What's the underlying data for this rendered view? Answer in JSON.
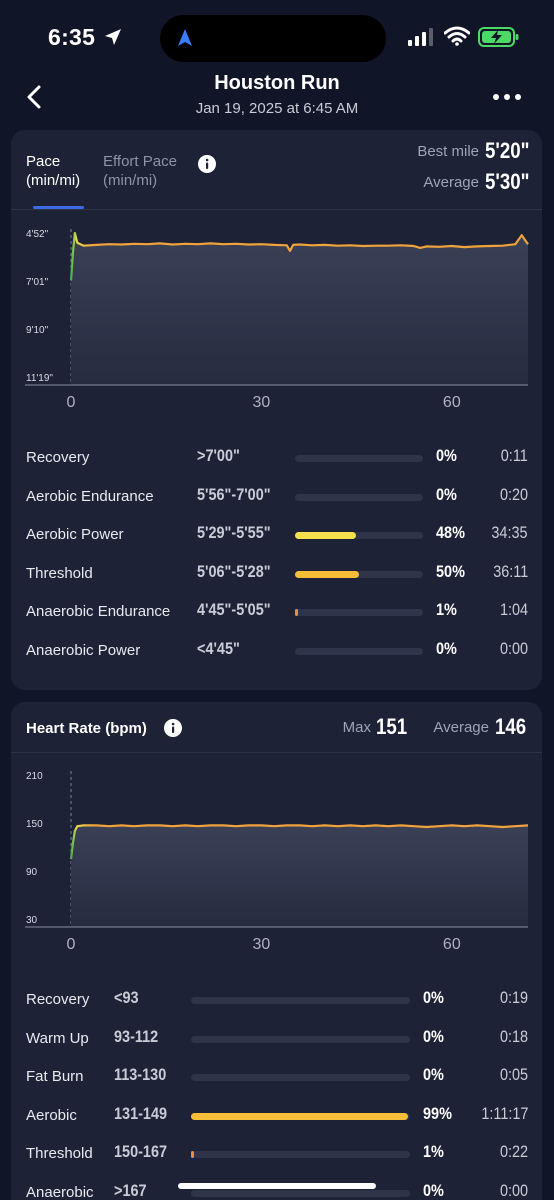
{
  "status_bar": {
    "time": "6:35",
    "icons": [
      "location-arrow-icon",
      "navigation-icon",
      "signal-icon",
      "wifi-icon",
      "battery-charging-icon"
    ]
  },
  "header": {
    "title": "Houston Run",
    "date": "Jan 19, 2025 at 6:45 AM",
    "icons": [
      "back-chevron-icon",
      "more-dots-icon"
    ]
  },
  "pace_card": {
    "tabs": [
      {
        "label": "Pace",
        "unit": "(min/mi)",
        "active": true
      },
      {
        "label": "Effort Pace",
        "unit": "(min/mi)",
        "active": false
      }
    ],
    "best_mile_label": "Best mile",
    "best_mile_value": "5'20\"",
    "average_label": "Average",
    "average_value": "5'30\"",
    "accent_color": "#3d6be3",
    "chart_data": {
      "type": "line",
      "y_tick_labels": [
        "4'52\"",
        "7'01\"",
        "9'10\"",
        "11'19\""
      ],
      "x_tick_labels": [
        "0",
        "30",
        "60"
      ],
      "xlim": [
        0,
        72
      ],
      "ylim_seconds": [
        292,
        679
      ],
      "x_minutes": [
        0,
        0.3,
        0.6,
        1,
        2,
        4,
        6,
        8,
        10,
        12,
        14,
        16,
        18,
        20,
        22,
        24,
        26,
        28,
        30,
        32,
        34,
        34.5,
        35,
        36,
        38,
        40,
        42,
        44,
        46,
        48,
        50,
        52,
        54,
        55,
        56,
        58,
        60,
        62,
        64,
        66,
        68,
        70,
        71,
        72
      ],
      "pace_seconds": [
        420,
        345,
        292,
        318,
        326,
        324,
        322,
        323,
        321,
        322,
        320,
        323,
        321,
        322,
        320,
        322,
        321,
        323,
        322,
        324,
        325,
        340,
        324,
        323,
        325,
        324,
        326,
        325,
        327,
        326,
        326,
        325,
        327,
        332,
        328,
        329,
        327,
        330,
        328,
        327,
        326,
        322,
        298,
        322
      ],
      "color": "#f2a23a"
    },
    "zones": [
      {
        "name": "Recovery",
        "range": ">7'00\"",
        "pct": "0%",
        "pct_value": 0,
        "time": "0:11",
        "color": "#7b8094"
      },
      {
        "name": "Aerobic Endurance",
        "range": "5'56\"-7'00\"",
        "pct": "0%",
        "pct_value": 0,
        "time": "0:20",
        "color": "#4aa05a"
      },
      {
        "name": "Aerobic Power",
        "range": "5'29\"-5'55\"",
        "pct": "48%",
        "pct_value": 48,
        "time": "34:35",
        "color": "#f4e04a"
      },
      {
        "name": "Threshold",
        "range": "5'06\"-5'28\"",
        "pct": "50%",
        "pct_value": 50,
        "time": "36:11",
        "color": "#f6be37"
      },
      {
        "name": "Anaerobic Endurance",
        "range": "4'45\"-5'05\"",
        "pct": "1%",
        "pct_value": 1,
        "time": "1:04",
        "color": "#f08a3c"
      },
      {
        "name": "Anaerobic Power",
        "range": "<4'45\"",
        "pct": "0%",
        "pct_value": 0,
        "time": "0:00",
        "color": "#e0483a"
      }
    ]
  },
  "hr_card": {
    "title": "Heart Rate (bpm)",
    "max_label": "Max",
    "max_value": "151",
    "average_label": "Average",
    "average_value": "146",
    "chart_data": {
      "type": "line",
      "y_tick_labels": [
        "210",
        "150",
        "90",
        "30"
      ],
      "x_tick_labels": [
        "0",
        "30",
        "60"
      ],
      "xlim": [
        0,
        72
      ],
      "ylim": [
        30,
        210
      ],
      "x_minutes": [
        0,
        0.3,
        0.6,
        1,
        2,
        4,
        6,
        8,
        10,
        12,
        14,
        16,
        18,
        20,
        22,
        24,
        26,
        28,
        30,
        32,
        34,
        36,
        38,
        40,
        42,
        44,
        46,
        48,
        50,
        52,
        54,
        56,
        58,
        60,
        62,
        64,
        66,
        68,
        70,
        72
      ],
      "bpm": [
        105,
        125,
        140,
        146,
        147,
        147,
        146,
        147,
        146,
        147,
        147,
        146,
        147,
        146,
        147,
        147,
        146,
        147,
        147,
        146,
        147,
        147,
        146,
        147,
        146,
        147,
        146,
        147,
        146,
        147,
        146,
        145,
        146,
        147,
        146,
        147,
        146,
        145,
        146,
        147
      ],
      "color": "#f2a23a"
    },
    "zones": [
      {
        "name": "Recovery",
        "range": "<93",
        "pct": "0%",
        "pct_value": 0,
        "time": "0:19",
        "color": "#7b8094"
      },
      {
        "name": "Warm Up",
        "range": "93-112",
        "pct": "0%",
        "pct_value": 0,
        "time": "0:18",
        "color": "#4aa05a"
      },
      {
        "name": "Fat Burn",
        "range": "113-130",
        "pct": "0%",
        "pct_value": 0,
        "time": "0:05",
        "color": "#f4e04a"
      },
      {
        "name": "Aerobic",
        "range": "131-149",
        "pct": "99%",
        "pct_value": 99,
        "time": "1:11:17",
        "color": "#f6be37"
      },
      {
        "name": "Threshold",
        "range": "150-167",
        "pct": "1%",
        "pct_value": 1,
        "time": "0:22",
        "color": "#f08a3c"
      },
      {
        "name": "Anaerobic",
        "range": ">167",
        "pct": "0%",
        "pct_value": 0,
        "time": "0:00",
        "color": "#e0483a"
      }
    ]
  }
}
